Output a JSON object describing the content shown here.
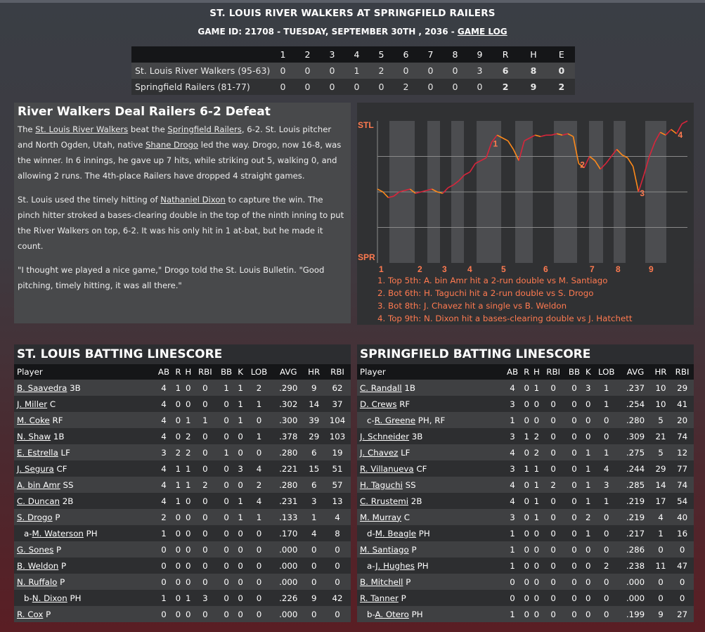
{
  "header": {
    "title": "ST. LOUIS RIVER WALKERS AT SPRINGFIELD RAILERS",
    "sub": "GAME ID: 21708 - TUESDAY, SEPTEMBER 30TH , 2036 - ",
    "game_log": "GAME LOG"
  },
  "linescore": {
    "columns": [
      "1",
      "2",
      "3",
      "4",
      "5",
      "6",
      "7",
      "8",
      "9",
      "R",
      "H",
      "E"
    ],
    "rows": [
      {
        "team": "St. Louis River Walkers (95-63)",
        "vals": [
          "0",
          "0",
          "0",
          "1",
          "2",
          "0",
          "0",
          "0",
          "3",
          "6",
          "8",
          "0"
        ]
      },
      {
        "team": "Springfield Railers (81-77)",
        "vals": [
          "0",
          "0",
          "0",
          "0",
          "0",
          "2",
          "0",
          "0",
          "0",
          "2",
          "9",
          "2"
        ]
      }
    ]
  },
  "story": {
    "headline": "River Walkers Deal Railers 6-2 Defeat",
    "p1": {
      "a": "The ",
      "b": "St. Louis River Walkers",
      "c": " beat the ",
      "d": "Springfield Railers",
      "e": ", 6-2. St. Louis pitcher and North Ogden, Utah, native ",
      "f": "Shane Drogo",
      "g": " led the way. Drogo, now 16-8, was the winner. In 6 innings, he gave up 7 hits, while striking out 5, walking 0, and allowing 2 runs. The 4th-place Railers have dropped 4 straight games."
    },
    "p2": {
      "a": "St. Louis used the timely hitting of ",
      "b": "Nathaniel Dixon",
      "c": " to capture the win. The pinch hitter stroked a bases-clearing double in the top of the ninth inning to put the River Walkers on top, 6-2. It was his only hit in 1 at-bat, but he made it count."
    },
    "p3": "\"I thought we played a nice game,\" Drogo told the St. Louis Bulletin. \"Good pitching, timely hitting, it was all there.\""
  },
  "chart_data": {
    "type": "line",
    "title": "",
    "ylabel_top": "STL",
    "ylabel_bottom": "SPR",
    "innings": [
      "1",
      "2",
      "3",
      "4",
      "5",
      "6",
      "7",
      "8",
      "9"
    ],
    "colors": {
      "stl": "#d9253b",
      "spr": "#ff8a1a",
      "label": "#ff7a50"
    },
    "series": [
      {
        "values": [
          0.52,
          0.5,
          0.46,
          0.47,
          0.5,
          0.51,
          0.52,
          0.49,
          0.5,
          0.51,
          0.52,
          0.5,
          0.49,
          0.53,
          0.55,
          0.58,
          0.62,
          0.64,
          0.7,
          0.72,
          0.74,
          0.85,
          0.9,
          0.88,
          0.86,
          0.8,
          0.72,
          0.86,
          0.88,
          0.9,
          0.89,
          0.9,
          0.9,
          0.91,
          0.9,
          0.91,
          0.89,
          0.7,
          0.67,
          0.75,
          0.72,
          0.66,
          0.7,
          0.75,
          0.8,
          0.76,
          0.74,
          0.68,
          0.5,
          0.62,
          0.75,
          0.85,
          0.92,
          0.9,
          0.94,
          0.91,
          0.98,
          1.0
        ]
      }
    ],
    "events": [
      {
        "index": 21,
        "label": "1"
      },
      {
        "index": 37,
        "label": "2"
      },
      {
        "index": 48,
        "label": "3"
      },
      {
        "index": 55,
        "label": "4"
      }
    ],
    "notes": [
      "1. Top 5th: A. bin Amr hit a 2-run double vs M. Santiago",
      "2. Bot 6th: H. Taguchi hit a 2-run double vs S. Drogo",
      "3. Bot 8th: J. Chavez hit a single vs B. Weldon",
      "4. Top 9th: N. Dixon hit a bases-clearing double vs J. Hatchett"
    ]
  },
  "batting_columns": [
    "Player",
    "AB",
    "R",
    "H",
    "RBI",
    "BB",
    "K",
    "LOB",
    "AVG",
    "HR",
    "RBI"
  ],
  "stl": {
    "title": "ST. LOUIS BATTING LINESCORE",
    "rows": [
      {
        "pre": "",
        "name": "B. Saavedra",
        "pos": " 3B",
        "s": [
          "4",
          "1",
          "0",
          "0",
          "1",
          "1",
          "2",
          ".290",
          "9",
          "62"
        ]
      },
      {
        "pre": "",
        "name": "J. Miller",
        "pos": " C",
        "s": [
          "4",
          "0",
          "0",
          "0",
          "0",
          "1",
          "1",
          ".302",
          "14",
          "37"
        ]
      },
      {
        "pre": "",
        "name": "M. Coke",
        "pos": " RF",
        "s": [
          "4",
          "0",
          "1",
          "1",
          "0",
          "1",
          "0",
          ".300",
          "39",
          "104"
        ]
      },
      {
        "pre": "",
        "name": "N. Shaw",
        "pos": " 1B",
        "s": [
          "4",
          "0",
          "2",
          "0",
          "0",
          "0",
          "1",
          ".378",
          "29",
          "103"
        ]
      },
      {
        "pre": "",
        "name": "E. Estrella",
        "pos": " LF",
        "s": [
          "3",
          "2",
          "2",
          "0",
          "1",
          "0",
          "0",
          ".280",
          "6",
          "19"
        ]
      },
      {
        "pre": "",
        "name": "J. Segura",
        "pos": " CF",
        "s": [
          "4",
          "1",
          "1",
          "0",
          "0",
          "3",
          "4",
          ".221",
          "15",
          "51"
        ]
      },
      {
        "pre": "",
        "name": "A. bin Amr",
        "pos": " SS",
        "s": [
          "4",
          "1",
          "1",
          "2",
          "0",
          "0",
          "2",
          ".280",
          "6",
          "57"
        ]
      },
      {
        "pre": "",
        "name": "C. Duncan",
        "pos": " 2B",
        "s": [
          "4",
          "1",
          "0",
          "0",
          "0",
          "1",
          "4",
          ".231",
          "3",
          "13"
        ]
      },
      {
        "pre": "",
        "name": "S. Drogo",
        "pos": " P",
        "s": [
          "2",
          "0",
          "0",
          "0",
          "0",
          "1",
          "1",
          ".133",
          "1",
          "4"
        ]
      },
      {
        "pre": "a-",
        "name": "M. Waterson",
        "pos": " PH",
        "s": [
          "1",
          "0",
          "0",
          "0",
          "0",
          "0",
          "0",
          ".170",
          "4",
          "8"
        ]
      },
      {
        "pre": "",
        "name": "G. Sones",
        "pos": " P",
        "s": [
          "0",
          "0",
          "0",
          "0",
          "0",
          "0",
          "0",
          ".000",
          "0",
          "0"
        ]
      },
      {
        "pre": "",
        "name": "B. Weldon",
        "pos": " P",
        "s": [
          "0",
          "0",
          "0",
          "0",
          "0",
          "0",
          "0",
          ".000",
          "0",
          "0"
        ]
      },
      {
        "pre": "",
        "name": "N. Ruffalo",
        "pos": " P",
        "s": [
          "0",
          "0",
          "0",
          "0",
          "0",
          "0",
          "0",
          ".000",
          "0",
          "0"
        ]
      },
      {
        "pre": "b-",
        "name": "N. Dixon",
        "pos": " PH",
        "s": [
          "1",
          "0",
          "1",
          "3",
          "0",
          "0",
          "0",
          ".226",
          "9",
          "42"
        ]
      },
      {
        "pre": "",
        "name": "R. Cox",
        "pos": " P",
        "s": [
          "0",
          "0",
          "0",
          "0",
          "0",
          "0",
          "0",
          ".000",
          "0",
          "0"
        ]
      }
    ]
  },
  "spr": {
    "title": "SPRINGFIELD BATTING LINESCORE",
    "rows": [
      {
        "pre": "",
        "name": "C. Randall",
        "pos": " 1B",
        "s": [
          "4",
          "0",
          "1",
          "0",
          "0",
          "3",
          "1",
          ".237",
          "10",
          "29"
        ]
      },
      {
        "pre": "",
        "name": "D. Crews",
        "pos": " RF",
        "s": [
          "3",
          "0",
          "0",
          "0",
          "0",
          "0",
          "1",
          ".254",
          "10",
          "41"
        ]
      },
      {
        "pre": "c-",
        "name": "R. Greene",
        "pos": " PH, RF",
        "s": [
          "1",
          "0",
          "0",
          "0",
          "0",
          "0",
          "0",
          ".280",
          "5",
          "20"
        ]
      },
      {
        "pre": "",
        "name": "J. Schneider",
        "pos": " 3B",
        "s": [
          "3",
          "1",
          "2",
          "0",
          "0",
          "0",
          "0",
          ".309",
          "21",
          "74"
        ]
      },
      {
        "pre": "",
        "name": "J. Chavez",
        "pos": " LF",
        "s": [
          "4",
          "0",
          "2",
          "0",
          "0",
          "1",
          "1",
          ".275",
          "5",
          "12"
        ]
      },
      {
        "pre": "",
        "name": "R. Villanueva",
        "pos": " CF",
        "s": [
          "3",
          "1",
          "1",
          "0",
          "0",
          "1",
          "4",
          ".244",
          "29",
          "77"
        ]
      },
      {
        "pre": "",
        "name": "H. Taguchi",
        "pos": " SS",
        "s": [
          "4",
          "0",
          "1",
          "2",
          "0",
          "1",
          "3",
          ".285",
          "14",
          "74"
        ]
      },
      {
        "pre": "",
        "name": "C. Rrustemi",
        "pos": " 2B",
        "s": [
          "4",
          "0",
          "1",
          "0",
          "0",
          "1",
          "1",
          ".219",
          "17",
          "54"
        ]
      },
      {
        "pre": "",
        "name": "M. Murray",
        "pos": " C",
        "s": [
          "3",
          "0",
          "1",
          "0",
          "0",
          "2",
          "0",
          ".219",
          "4",
          "40"
        ]
      },
      {
        "pre": "d-",
        "name": "M. Beagle",
        "pos": " PH",
        "s": [
          "1",
          "0",
          "0",
          "0",
          "0",
          "1",
          "0",
          ".217",
          "1",
          "16"
        ]
      },
      {
        "pre": "",
        "name": "M. Santiago",
        "pos": " P",
        "s": [
          "1",
          "0",
          "0",
          "0",
          "0",
          "0",
          "0",
          ".286",
          "0",
          "0"
        ]
      },
      {
        "pre": "a-",
        "name": "J. Hughes",
        "pos": " PH",
        "s": [
          "1",
          "0",
          "0",
          "0",
          "0",
          "0",
          "2",
          ".238",
          "11",
          "47"
        ]
      },
      {
        "pre": "",
        "name": "B. Mitchell",
        "pos": " P",
        "s": [
          "0",
          "0",
          "0",
          "0",
          "0",
          "0",
          "0",
          ".000",
          "0",
          "0"
        ]
      },
      {
        "pre": "",
        "name": "R. Tanner",
        "pos": " P",
        "s": [
          "0",
          "0",
          "0",
          "0",
          "0",
          "0",
          "0",
          ".000",
          "0",
          "0"
        ]
      },
      {
        "pre": "b-",
        "name": "A. Otero",
        "pos": " PH",
        "s": [
          "1",
          "0",
          "0",
          "0",
          "0",
          "0",
          "0",
          ".199",
          "9",
          "27"
        ]
      }
    ]
  }
}
